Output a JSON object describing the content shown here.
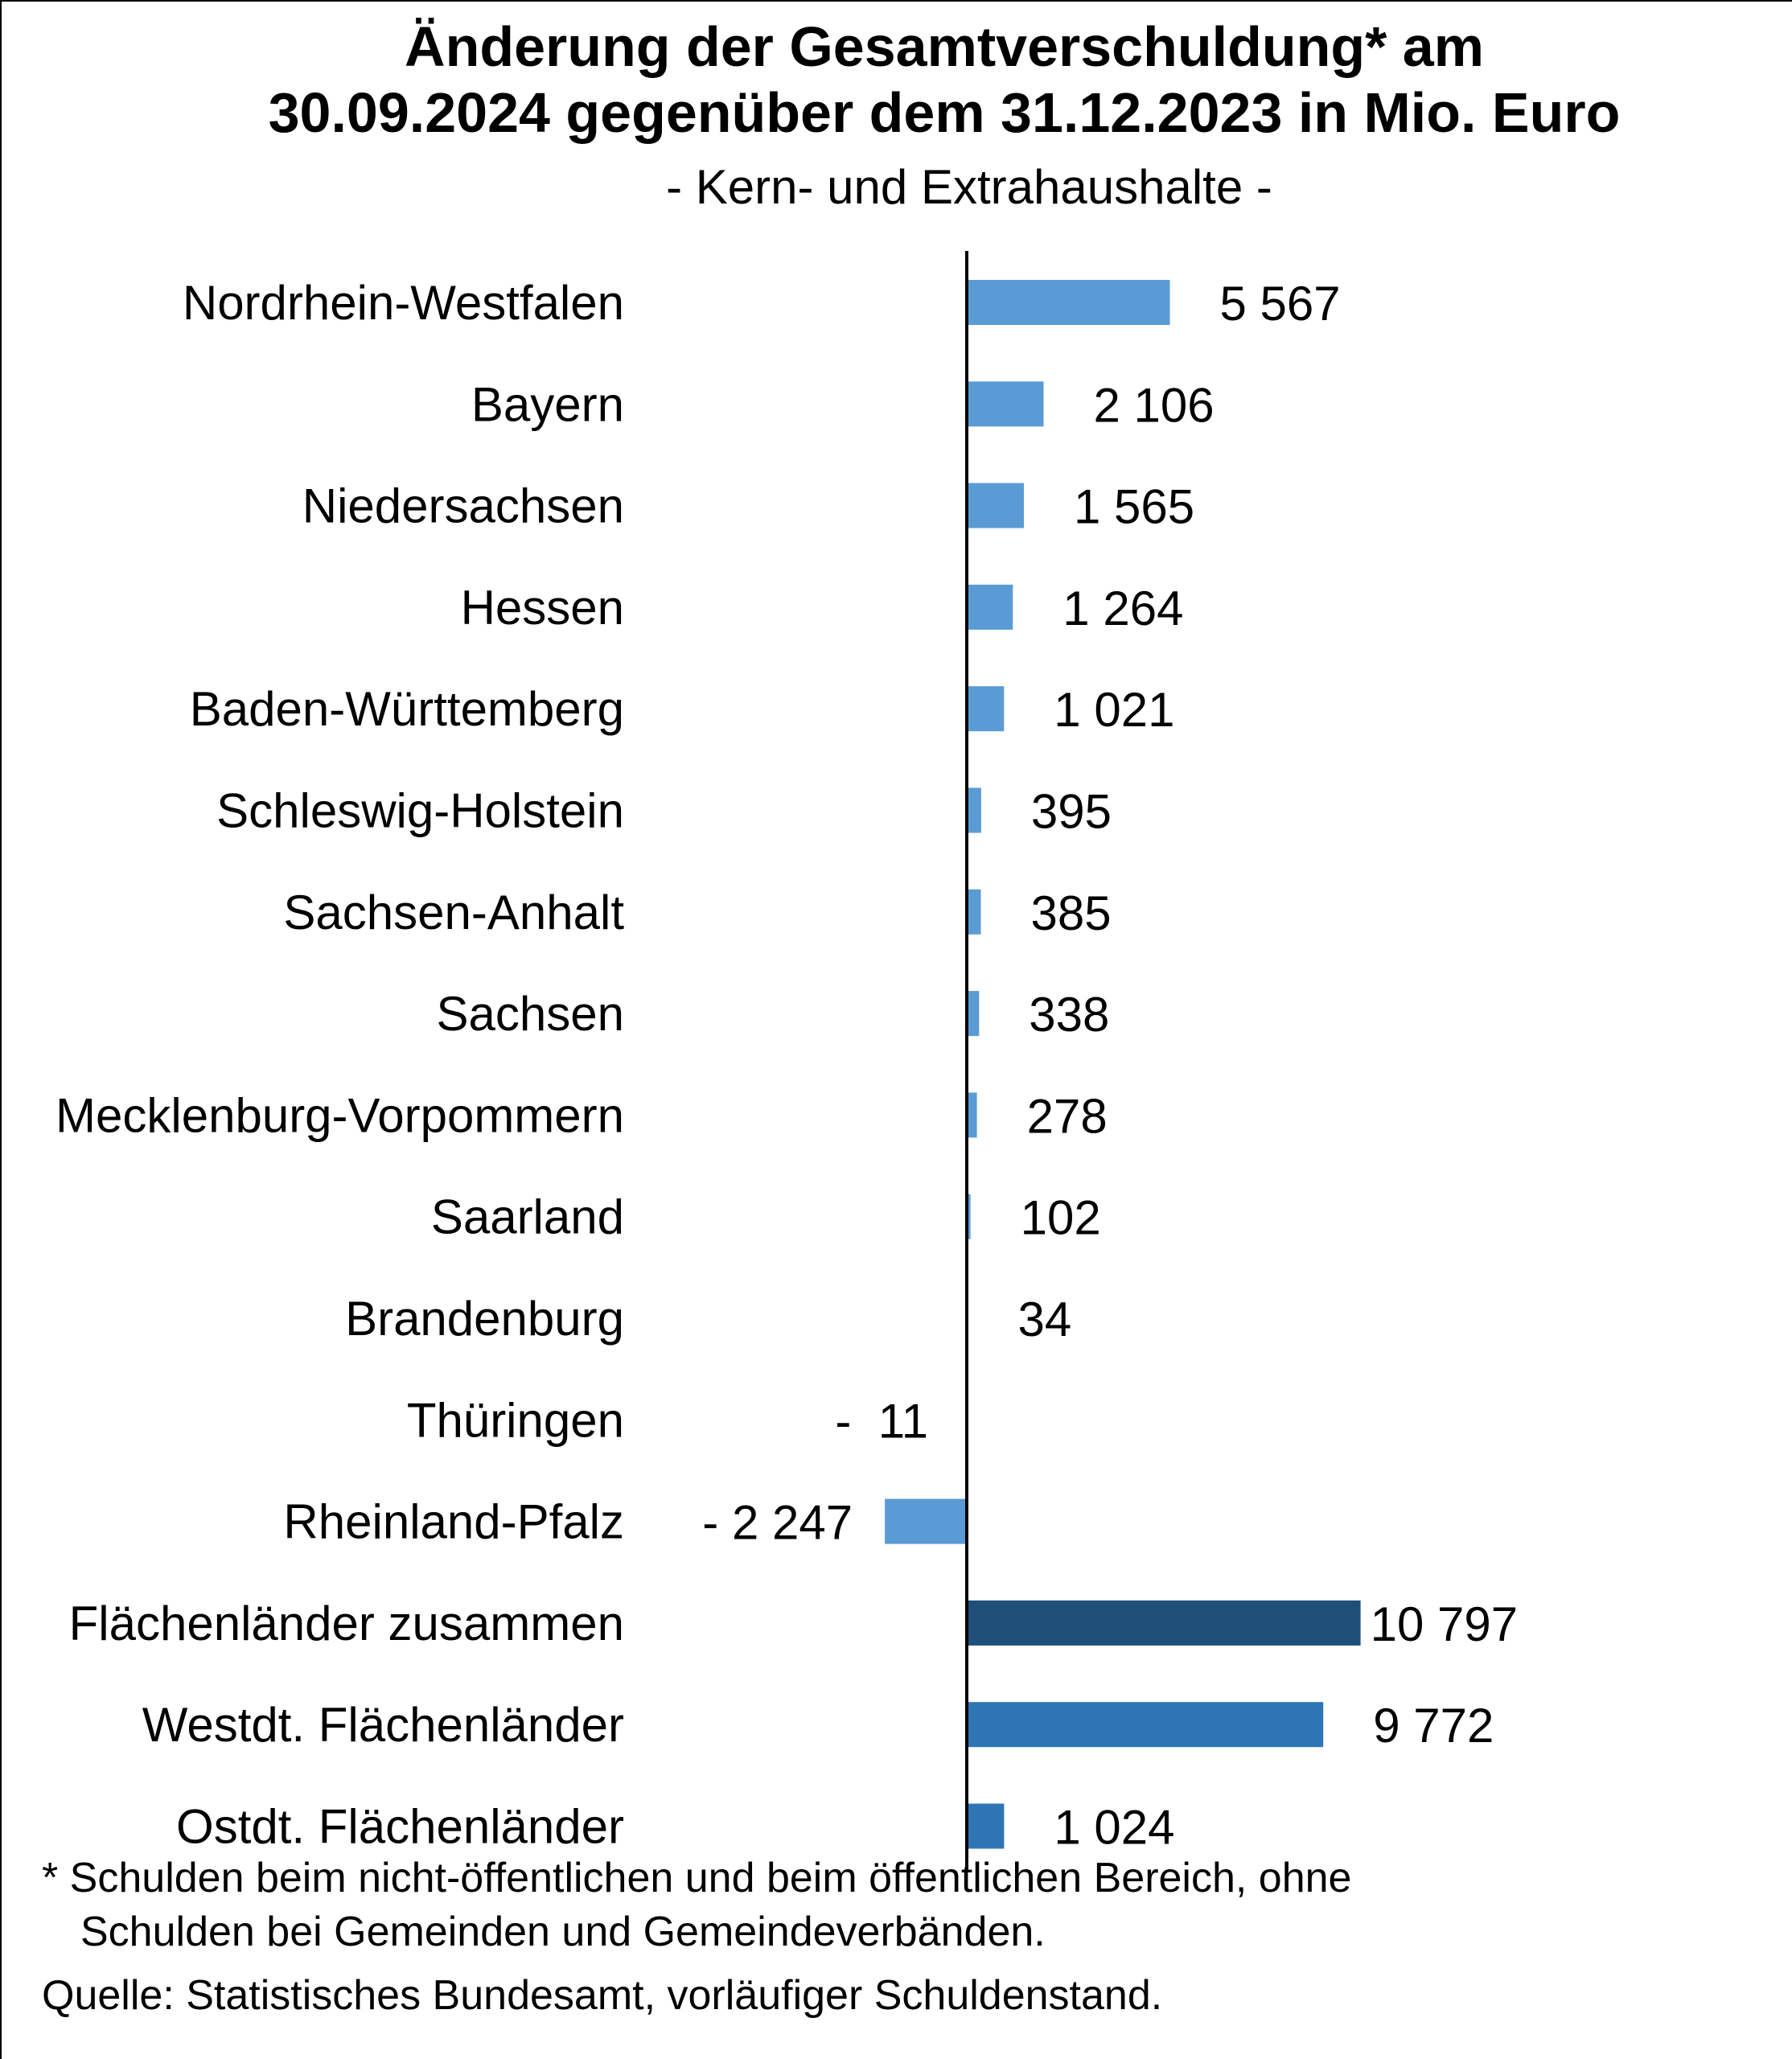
{
  "title_line1": "Änderung der Gesamtverschuldung* am",
  "title_line2": "30.09.2024 gegenüber dem 31.12.2023 in Mio. Euro",
  "subtitle": "- Kern- und Extrahaushalte -",
  "footnote_line1": "*  Schulden beim nicht-öffentlichen und beim öffentlichen Bereich, ohne",
  "footnote_line2": "Schulden bei Gemeinden und Gemeindeverbänden.",
  "source": "Quelle: Statistisches Bundesamt, vorläufiger Schuldenstand.",
  "colors": {
    "land": "#5b9bd5",
    "total": "#1f4e79",
    "region": "#2e75b6",
    "axis": "#000000"
  },
  "chart_data": {
    "type": "bar",
    "orientation": "horizontal",
    "title": "Änderung der Gesamtverschuldung* am 30.09.2024 gegenüber dem 31.12.2023 in Mio. Euro",
    "subtitle": "- Kern- und Extrahaushalte -",
    "categories": [
      "Nordrhein-Westfalen",
      "Bayern",
      "Niedersachsen",
      "Hessen",
      "Baden-Württemberg",
      "Schleswig-Holstein",
      "Sachsen-Anhalt",
      "Sachsen",
      "Mecklenburg-Vorpommern",
      "Saarland",
      "Brandenburg",
      "Thüringen",
      "Rheinland-Pfalz",
      "Flächenländer zusammen",
      "Westdt. Flächenländer",
      "Ostdt. Flächenländer"
    ],
    "values": [
      5567,
      2106,
      1565,
      1264,
      1021,
      395,
      385,
      338,
      278,
      102,
      34,
      -11,
      -2247,
      10797,
      9772,
      1024
    ],
    "value_labels": [
      "5 567",
      "2 106",
      "1 565",
      "1 264",
      "1 021",
      "395",
      "385",
      "338",
      "278",
      "102",
      "34",
      "-  11",
      "- 2 247",
      "10 797",
      "9 772",
      "1 024"
    ],
    "bar_groups": [
      "land",
      "land",
      "land",
      "land",
      "land",
      "land",
      "land",
      "land",
      "land",
      "land",
      "land",
      "land",
      "land",
      "total",
      "region",
      "region"
    ],
    "xlim": [
      -2247,
      10797
    ],
    "grid": false,
    "legend": "none"
  }
}
